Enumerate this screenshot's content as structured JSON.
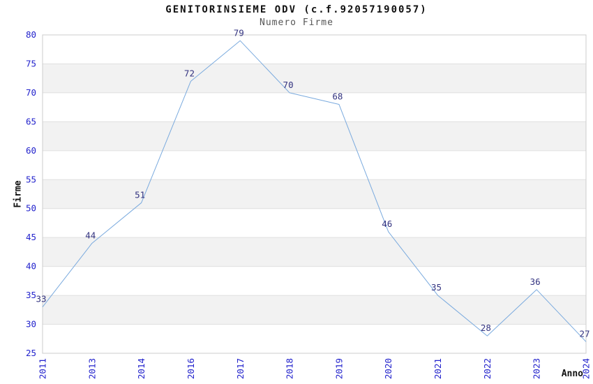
{
  "header": {
    "title": "GENITORINSIEME ODV (c.f.92057190057)",
    "subtitle": "Numero Firme"
  },
  "chart_data": {
    "type": "line",
    "title": "GENITORINSIEME ODV (c.f.92057190057)",
    "subtitle": "Numero Firme",
    "xlabel": "Anno",
    "ylabel": "Firme",
    "categories": [
      "2011",
      "2013",
      "2014",
      "2016",
      "2017",
      "2018",
      "2019",
      "2020",
      "2021",
      "2022",
      "2023",
      "2024"
    ],
    "values": [
      33,
      44,
      51,
      72,
      79,
      70,
      68,
      46,
      35,
      28,
      36,
      27
    ],
    "ylim": [
      25,
      80
    ],
    "ytick_step": 5,
    "yticks": [
      25,
      30,
      35,
      40,
      45,
      50,
      55,
      60,
      65,
      70,
      75,
      80
    ],
    "grid": true,
    "alternating_bands": true,
    "legend": "none",
    "data_labels_shown": true,
    "colors": {
      "line": "#7aaade",
      "tick_label": "#2222cc",
      "data_label": "#333380",
      "band": "#f2f2f2",
      "grid": "#e0e0e0",
      "border": "#cccccc",
      "title": "#111111",
      "subtitle": "#555555",
      "axis_title": "#111111",
      "background": "#ffffff"
    }
  }
}
